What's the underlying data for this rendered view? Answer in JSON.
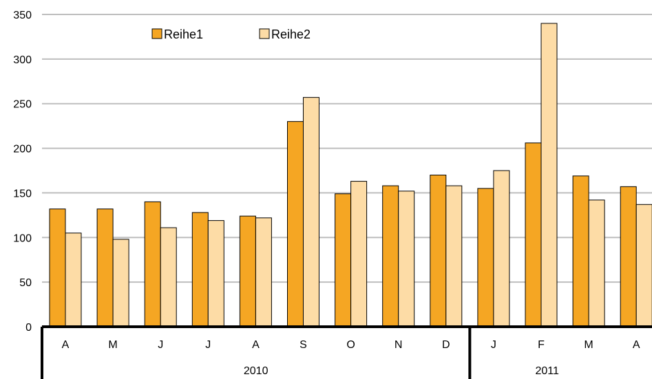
{
  "chart_data": {
    "type": "bar",
    "categories": [
      "A",
      "M",
      "J",
      "J",
      "A",
      "S",
      "O",
      "N",
      "D",
      "J",
      "F",
      "M",
      "A"
    ],
    "groups": [
      {
        "label": "2010",
        "count": 9
      },
      {
        "label": "2011",
        "count": 4
      }
    ],
    "series": [
      {
        "name": "Reihe1",
        "color": "#F5A623",
        "values": [
          132,
          132,
          140,
          128,
          124,
          230,
          149,
          158,
          170,
          155,
          206,
          169,
          157
        ]
      },
      {
        "name": "Reihe2",
        "color": "#FDDCA6",
        "values": [
          105,
          98,
          111,
          119,
          122,
          257,
          163,
          152,
          158,
          175,
          340,
          142,
          137
        ]
      }
    ],
    "ylim": [
      0,
      350
    ],
    "yticks": [
      0,
      50,
      100,
      150,
      200,
      250,
      300,
      350
    ],
    "grid": true,
    "legend_position": "top-left",
    "title": "",
    "xlabel": "",
    "ylabel": ""
  }
}
